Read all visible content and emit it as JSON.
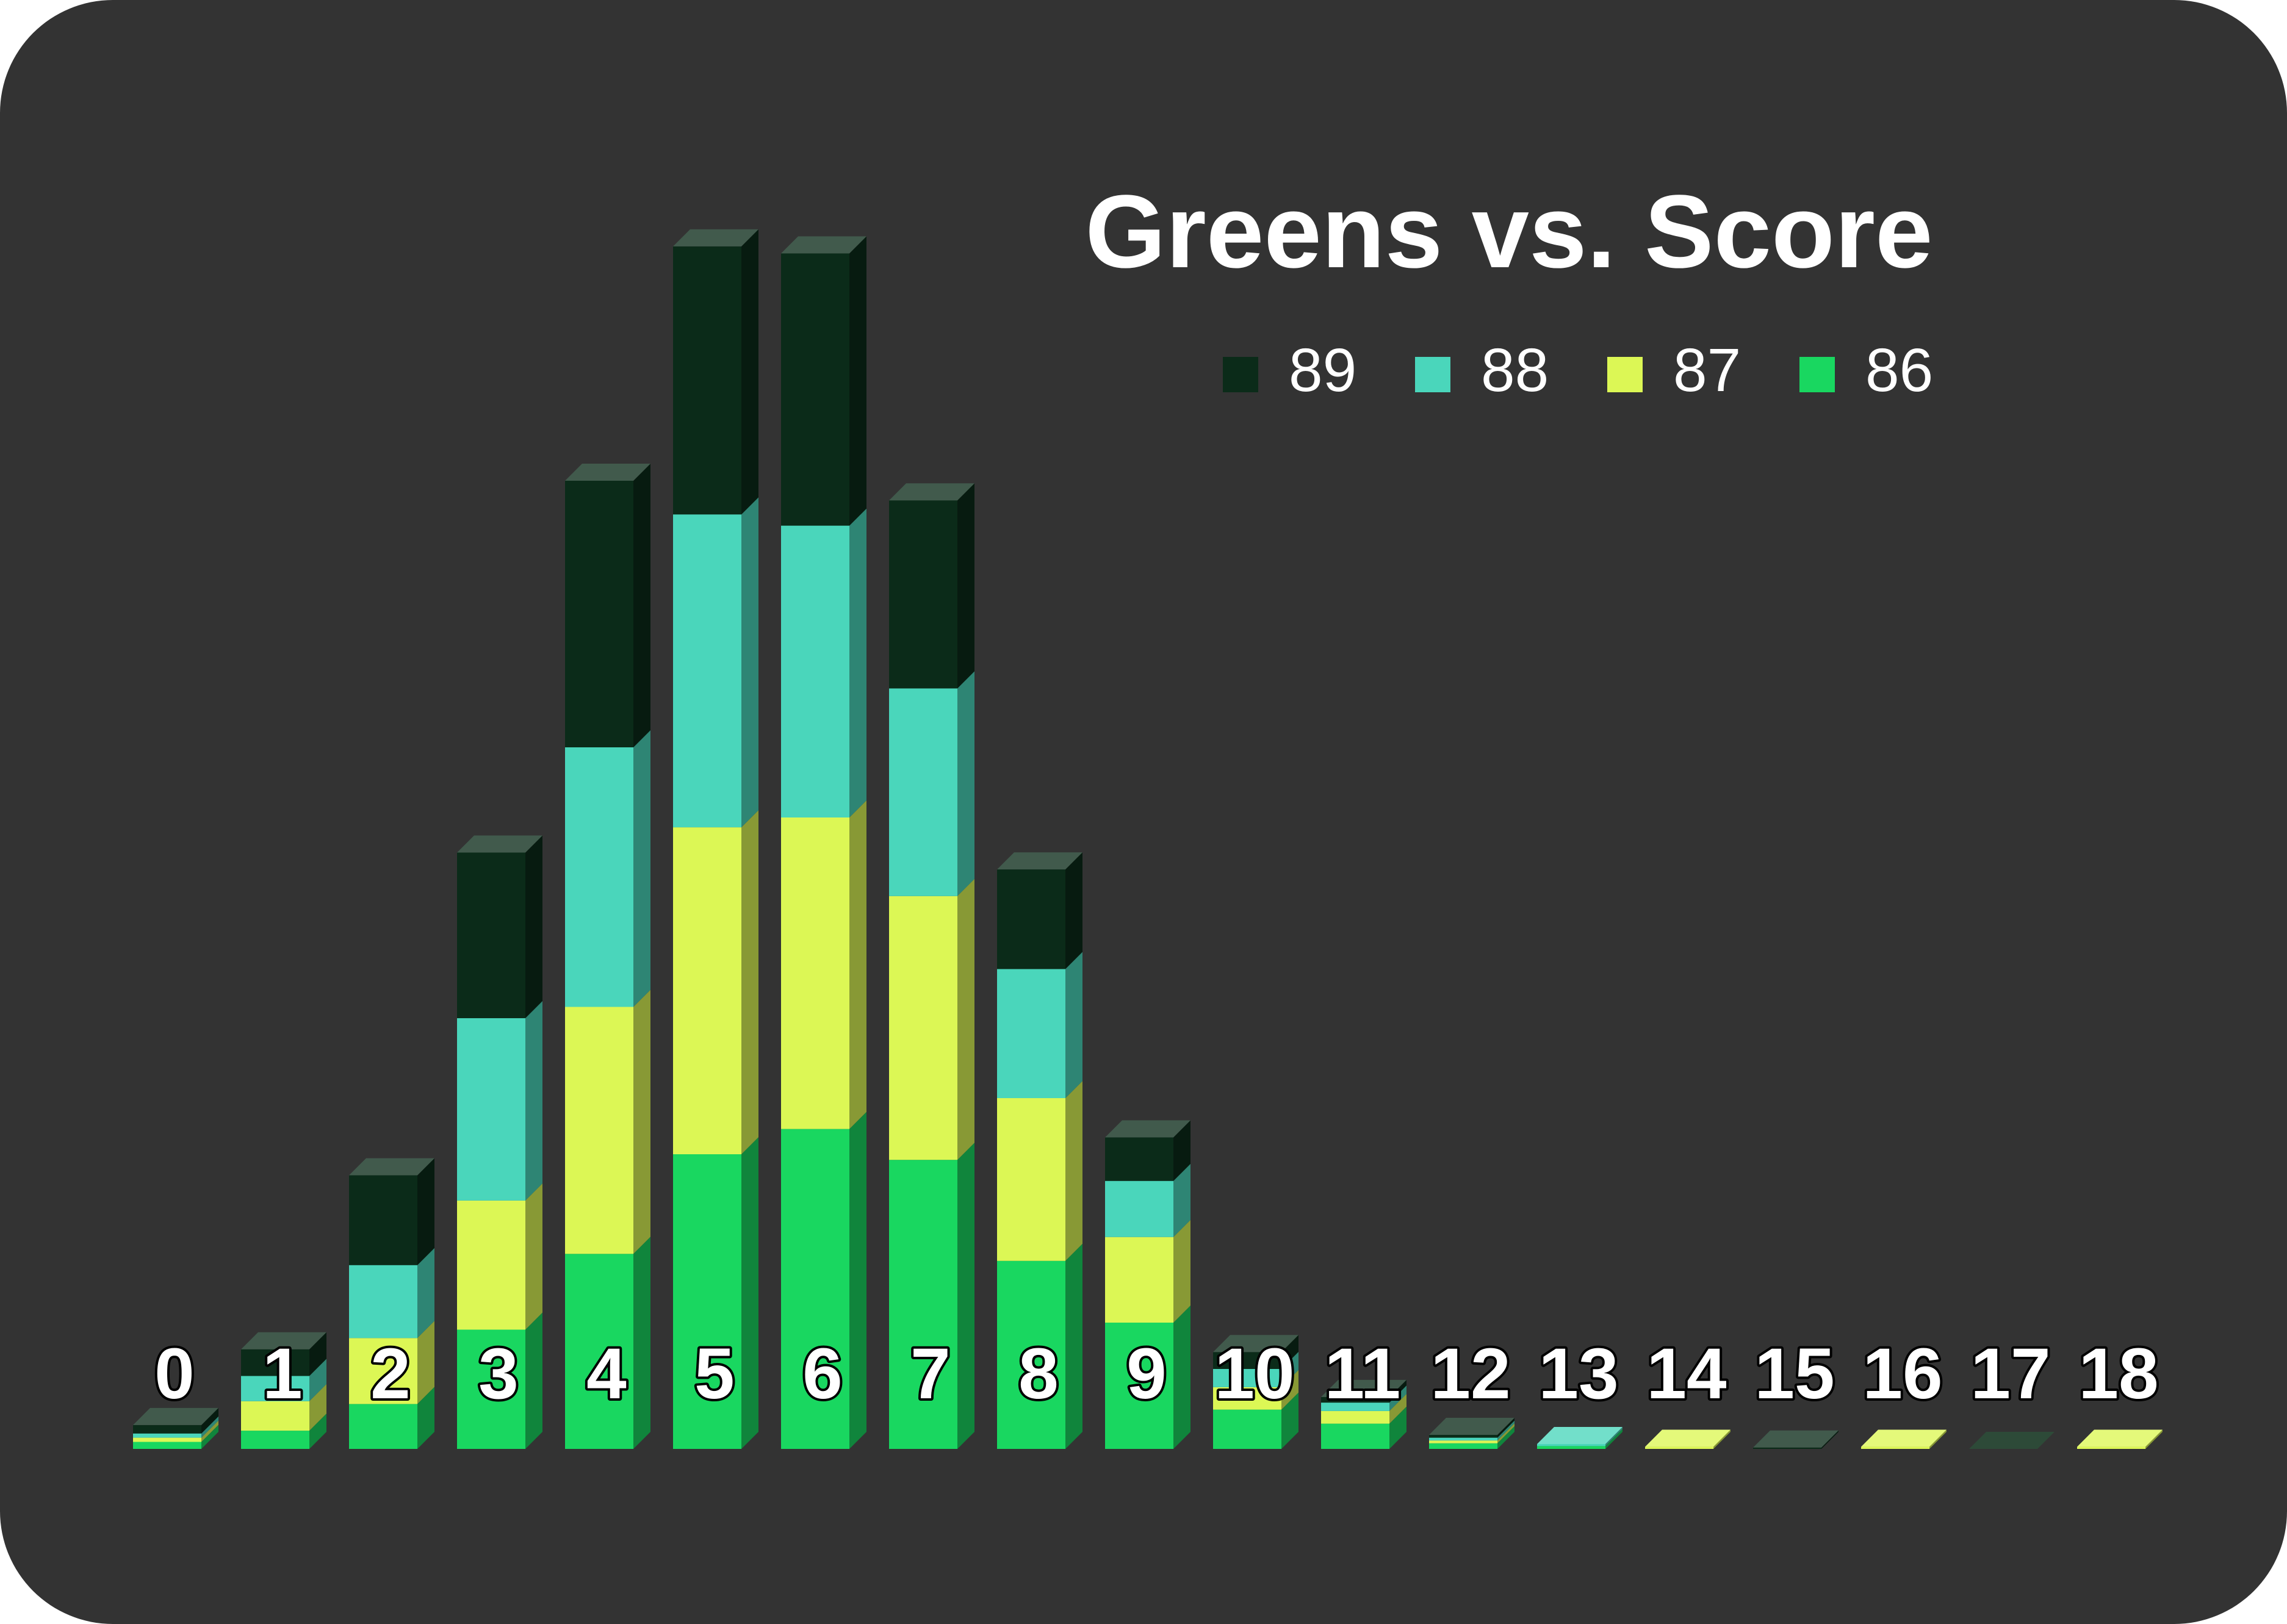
{
  "chart_data": {
    "type": "bar",
    "stacked": true,
    "three_d": true,
    "title": "Greens vs. Score",
    "xlabel": "",
    "ylabel": "",
    "ylim": [
      0,
      90
    ],
    "grid": false,
    "legend_position": "top-right",
    "categories": [
      "0",
      "1",
      "2",
      "3",
      "4",
      "5",
      "6",
      "7",
      "8",
      "9",
      "10",
      "11",
      "12",
      "13",
      "14",
      "15",
      "16",
      "17",
      "18"
    ],
    "series": [
      {
        "name": "86",
        "color": "#19d760",
        "values": [
          0.5,
          1.3,
          3.2,
          8.5,
          13.9,
          21.0,
          22.8,
          20.6,
          13.4,
          9.0,
          2.8,
          1.8,
          0.4,
          0.2,
          0,
          0,
          0,
          0,
          0
        ]
      },
      {
        "name": "87",
        "color": "#dcf755",
        "values": [
          0.3,
          2.1,
          4.7,
          9.2,
          17.6,
          23.3,
          22.2,
          18.8,
          11.6,
          6.1,
          1.6,
          0.9,
          0.2,
          0,
          0.15,
          0,
          0.15,
          0,
          0.15
        ]
      },
      {
        "name": "88",
        "color": "#4ad6bb",
        "values": [
          0.3,
          1.8,
          5.2,
          13.0,
          18.5,
          22.3,
          20.8,
          14.8,
          9.2,
          4.0,
          1.3,
          0.6,
          0.2,
          0.15,
          0,
          0,
          0,
          0,
          0
        ]
      },
      {
        "name": "89",
        "color": "#0b2b19",
        "values": [
          0.6,
          1.9,
          6.4,
          11.8,
          19.0,
          19.1,
          19.4,
          13.4,
          7.1,
          3.1,
          1.2,
          0.4,
          0.2,
          0,
          0,
          0.1,
          0,
          0,
          0
        ]
      }
    ]
  }
}
